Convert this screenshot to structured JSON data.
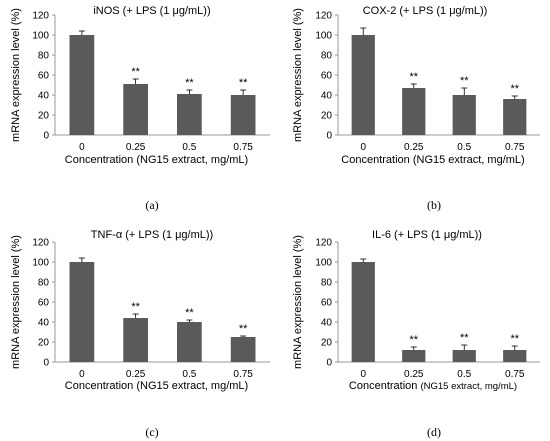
{
  "colors": {
    "bar": "#5a5a5a",
    "axis": "#9a9a9a",
    "error": "#000000",
    "text": "#000000"
  },
  "chart_data": [
    {
      "type": "bar",
      "panel_label": "(a)",
      "title": "iNOS (+ LPS (1 μg/mL))",
      "xlabel": "Concentration (NG15 extract, mg/mL)",
      "xlabel_parts": [],
      "ylabel": "mRNA expression level (%)",
      "ylim": [
        0,
        120
      ],
      "yticks": [
        "0",
        "20",
        "40",
        "60",
        "80",
        "100",
        "120"
      ],
      "categories": [
        "0",
        "0.25",
        "0.5",
        "0.75"
      ],
      "values": [
        100,
        51,
        41,
        40
      ],
      "errors": [
        4,
        5,
        4,
        5
      ],
      "annotations": [
        "",
        "**",
        "**",
        "**"
      ],
      "grid": false,
      "legend": "none"
    },
    {
      "type": "bar",
      "panel_label": "(b)",
      "title": "COX-2 (+ LPS (1 μg/mL))",
      "xlabel": "Concentration (NG15 extract, mg/mL)",
      "xlabel_parts": [],
      "ylabel": "mRNA expression level (%)",
      "ylim": [
        0,
        120
      ],
      "yticks": [
        "0",
        "20",
        "40",
        "60",
        "80",
        "100",
        "120"
      ],
      "categories": [
        "0",
        "0.25",
        "0.5",
        "0.75"
      ],
      "values": [
        100,
        47,
        40,
        36
      ],
      "errors": [
        7,
        4,
        7,
        3
      ],
      "annotations": [
        "",
        "**",
        "**",
        "**"
      ],
      "grid": false,
      "legend": "none"
    },
    {
      "type": "bar",
      "panel_label": "(c)",
      "title": "TNF-α (+ LPS (1 μg/mL))",
      "xlabel": "Concentration (NG15 extract, mg/mL)",
      "xlabel_parts": [],
      "ylabel": "mRNA expression level (%)",
      "ylim": [
        0,
        120
      ],
      "yticks": [
        "0",
        "20",
        "40",
        "60",
        "80",
        "100",
        "120"
      ],
      "categories": [
        "0",
        "0.25",
        "0.5",
        "0.75"
      ],
      "values": [
        100,
        44,
        40,
        25
      ],
      "errors": [
        4,
        4,
        2,
        1
      ],
      "annotations": [
        "",
        "**",
        "**",
        "**"
      ],
      "grid": false,
      "legend": "none"
    },
    {
      "type": "bar",
      "panel_label": "(d)",
      "title": "IL-6 (+ LPS (1 μg/mL))",
      "xlabel": "",
      "xlabel_parts": [
        "Concentration ",
        "(NG15 extract, mg/mL)"
      ],
      "ylabel": "mRNA expression level (%)",
      "ylim": [
        0,
        120
      ],
      "yticks": [
        "0",
        "20",
        "40",
        "60",
        "80",
        "100",
        "120"
      ],
      "categories": [
        "0",
        "0.25",
        "0.5",
        "0.75"
      ],
      "values": [
        100,
        12,
        12,
        12
      ],
      "errors": [
        3,
        3,
        5,
        4
      ],
      "annotations": [
        "",
        "**",
        "**",
        "**"
      ],
      "grid": false,
      "legend": "none"
    }
  ]
}
